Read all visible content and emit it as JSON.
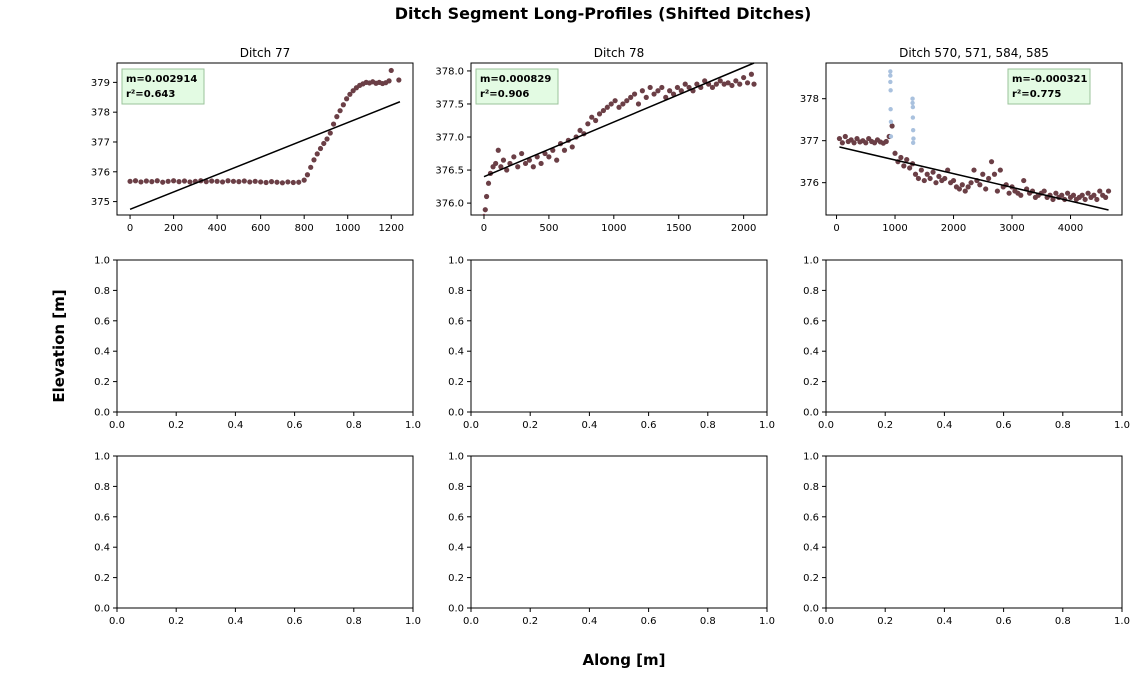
{
  "figure": {
    "title": "Ditch Segment Long-Profiles (Shifted Ditches)",
    "xlabel": "Along [m]",
    "ylabel": "Elevation [m]"
  },
  "colors": {
    "primary_points": "#6b3f46",
    "secondary_points": "#a9c1de",
    "fit_line": "#000000",
    "stats_box_fill": "#e3fbe3",
    "stats_box_border": "#9bc39b",
    "axes": "#000000",
    "background": "#ffffff"
  },
  "chart_data": [
    {
      "type": "scatter",
      "title": "Ditch 77",
      "xlim": [
        -60,
        1300
      ],
      "ylim": [
        374.55,
        379.65
      ],
      "xticks": [
        0,
        200,
        400,
        600,
        800,
        1000,
        1200
      ],
      "yticks": [
        375,
        376,
        377,
        378,
        379
      ],
      "tick_labels_x": [
        "0",
        "200",
        "400",
        "600",
        "800",
        "1000",
        "1200"
      ],
      "tick_labels_y": [
        "375",
        "376",
        "377",
        "378",
        "379"
      ],
      "stats": {
        "slope_label": "m=0.002914",
        "r2_label": "r²=0.643",
        "position": "top-left"
      },
      "fit_line": {
        "x": [
          0,
          1240
        ],
        "y": [
          374.74,
          378.35
        ]
      },
      "series": [
        {
          "name": "profile",
          "color_key": "primary_points",
          "x": [
            0,
            25,
            50,
            75,
            100,
            125,
            150,
            175,
            200,
            225,
            250,
            275,
            300,
            325,
            350,
            375,
            400,
            425,
            450,
            475,
            500,
            525,
            550,
            575,
            600,
            625,
            650,
            675,
            700,
            725,
            750,
            775,
            800,
            815,
            830,
            845,
            860,
            875,
            890,
            905,
            920,
            935,
            950,
            965,
            980,
            995,
            1010,
            1025,
            1040,
            1055,
            1070,
            1085,
            1100,
            1115,
            1130,
            1145,
            1160,
            1175,
            1190,
            1200,
            1235
          ],
          "y": [
            375.68,
            375.7,
            375.66,
            375.69,
            375.67,
            375.7,
            375.65,
            375.68,
            375.7,
            375.67,
            375.69,
            375.66,
            375.68,
            375.7,
            375.67,
            375.69,
            375.68,
            375.66,
            375.7,
            375.68,
            375.67,
            375.69,
            375.66,
            375.68,
            375.66,
            375.64,
            375.67,
            375.65,
            375.63,
            375.66,
            375.64,
            375.65,
            375.72,
            375.9,
            376.15,
            376.4,
            376.6,
            376.78,
            376.95,
            377.1,
            377.3,
            377.6,
            377.85,
            378.05,
            378.25,
            378.45,
            378.6,
            378.72,
            378.82,
            378.9,
            378.95,
            379.0,
            378.98,
            379.02,
            378.97,
            379.0,
            378.96,
            378.99,
            379.05,
            379.4,
            379.08
          ]
        }
      ]
    },
    {
      "type": "scatter",
      "title": "Ditch 78",
      "xlim": [
        -100,
        2180
      ],
      "ylim": [
        375.82,
        378.12
      ],
      "xticks": [
        0,
        500,
        1000,
        1500,
        2000
      ],
      "yticks": [
        376.0,
        376.5,
        377.0,
        377.5,
        378.0
      ],
      "tick_labels_x": [
        "0",
        "500",
        "1000",
        "1500",
        "2000"
      ],
      "tick_labels_y": [
        "376.0",
        "376.5",
        "377.0",
        "377.5",
        "378.0"
      ],
      "stats": {
        "slope_label": "m=0.000829",
        "r2_label": "r²=0.906",
        "position": "top-left"
      },
      "fit_line": {
        "x": [
          0,
          2080
        ],
        "y": [
          376.4,
          378.12
        ]
      },
      "series": [
        {
          "name": "profile",
          "color_key": "primary_points",
          "x": [
            0,
            10,
            20,
            35,
            50,
            70,
            90,
            110,
            130,
            150,
            175,
            200,
            230,
            260,
            290,
            320,
            350,
            380,
            410,
            440,
            470,
            500,
            530,
            560,
            590,
            620,
            650,
            680,
            710,
            740,
            770,
            800,
            830,
            860,
            890,
            920,
            950,
            980,
            1010,
            1040,
            1070,
            1100,
            1130,
            1160,
            1190,
            1220,
            1250,
            1280,
            1310,
            1340,
            1370,
            1400,
            1430,
            1460,
            1490,
            1520,
            1550,
            1580,
            1610,
            1640,
            1670,
            1700,
            1730,
            1760,
            1790,
            1820,
            1850,
            1880,
            1910,
            1940,
            1970,
            2000,
            2030,
            2060,
            2080
          ],
          "y": [
            375.8,
            375.9,
            376.1,
            376.3,
            376.45,
            376.55,
            376.6,
            376.8,
            376.55,
            376.65,
            376.5,
            376.6,
            376.7,
            376.55,
            376.75,
            376.6,
            376.65,
            376.55,
            376.7,
            376.6,
            376.75,
            376.7,
            376.8,
            376.65,
            376.9,
            376.8,
            376.95,
            376.85,
            377.0,
            377.1,
            377.05,
            377.2,
            377.3,
            377.25,
            377.35,
            377.4,
            377.45,
            377.5,
            377.55,
            377.45,
            377.5,
            377.55,
            377.6,
            377.65,
            377.5,
            377.7,
            377.6,
            377.75,
            377.65,
            377.7,
            377.75,
            377.6,
            377.7,
            377.65,
            377.75,
            377.7,
            377.8,
            377.75,
            377.7,
            377.8,
            377.75,
            377.85,
            377.8,
            377.75,
            377.8,
            377.85,
            377.8,
            377.82,
            377.78,
            377.85,
            377.8,
            377.9,
            377.82,
            377.95,
            377.8
          ]
        }
      ]
    },
    {
      "type": "scatter",
      "title": "Ditch 570, 571, 584, 585",
      "xlim": [
        -180,
        4880
      ],
      "ylim": [
        375.23,
        378.85
      ],
      "xticks": [
        0,
        1000,
        2000,
        3000,
        4000
      ],
      "yticks": [
        376,
        377,
        378
      ],
      "tick_labels_x": [
        "0",
        "1000",
        "2000",
        "3000",
        "4000"
      ],
      "tick_labels_y": [
        "376",
        "377",
        "378"
      ],
      "stats": {
        "slope_label": "m=-0.000321",
        "r2_label": "r²=0.775",
        "position": "top-right"
      },
      "fit_line": {
        "x": [
          50,
          4650
        ],
        "y": [
          376.85,
          375.35
        ]
      },
      "series": [
        {
          "name": "profile",
          "color_key": "primary_points",
          "x": [
            50,
            100,
            150,
            200,
            250,
            300,
            350,
            400,
            450,
            500,
            550,
            600,
            650,
            700,
            750,
            800,
            850,
            900,
            950,
            1000,
            1050,
            1100,
            1150,
            1200,
            1250,
            1300,
            1350,
            1400,
            1450,
            1500,
            1550,
            1600,
            1650,
            1700,
            1750,
            1800,
            1850,
            1900,
            1950,
            2000,
            2050,
            2100,
            2150,
            2200,
            2250,
            2300,
            2350,
            2400,
            2450,
            2500,
            2550,
            2600,
            2650,
            2700,
            2750,
            2800,
            2850,
            2900,
            2950,
            3000,
            3050,
            3100,
            3150,
            3200,
            3250,
            3300,
            3350,
            3400,
            3450,
            3500,
            3550,
            3600,
            3650,
            3700,
            3750,
            3800,
            3850,
            3900,
            3950,
            4000,
            4050,
            4100,
            4150,
            4200,
            4250,
            4300,
            4350,
            4400,
            4450,
            4500,
            4550,
            4600,
            4650
          ],
          "y": [
            377.05,
            376.95,
            377.1,
            376.98,
            377.02,
            376.95,
            377.05,
            376.97,
            377.0,
            376.95,
            377.05,
            376.98,
            376.95,
            377.02,
            376.97,
            376.94,
            376.98,
            377.1,
            377.35,
            376.7,
            376.5,
            376.6,
            376.4,
            376.55,
            376.35,
            376.45,
            376.2,
            376.1,
            376.3,
            376.05,
            376.2,
            376.1,
            376.25,
            376.0,
            376.15,
            376.05,
            376.1,
            376.3,
            376.0,
            376.05,
            375.9,
            375.85,
            375.95,
            375.8,
            375.9,
            376.0,
            376.3,
            376.05,
            375.95,
            376.2,
            375.85,
            376.1,
            376.5,
            376.2,
            375.8,
            376.3,
            375.9,
            375.95,
            375.75,
            375.9,
            375.8,
            375.75,
            375.7,
            376.05,
            375.85,
            375.75,
            375.8,
            375.65,
            375.7,
            375.75,
            375.8,
            375.65,
            375.7,
            375.6,
            375.75,
            375.65,
            375.7,
            375.6,
            375.75,
            375.65,
            375.7,
            375.6,
            375.65,
            375.7,
            375.6,
            375.75,
            375.65,
            375.7,
            375.6,
            375.8,
            375.7,
            375.65,
            375.8
          ]
        },
        {
          "name": "outliers",
          "color_key": "secondary_points",
          "x": [
            920,
            920,
            920,
            925,
            925,
            930,
            930,
            1300,
            1300,
            1305,
            1305,
            1310,
            1310,
            1315
          ],
          "y": [
            378.65,
            378.55,
            378.4,
            378.2,
            377.75,
            377.45,
            377.1,
            378.0,
            377.9,
            377.8,
            377.55,
            377.25,
            376.95,
            377.05
          ]
        }
      ]
    },
    {
      "type": "empty",
      "title": "",
      "xlim": [
        0,
        1
      ],
      "ylim": [
        0,
        1
      ],
      "xticks": [
        0,
        0.2,
        0.4,
        0.6,
        0.8,
        1.0
      ],
      "yticks": [
        0,
        0.2,
        0.4,
        0.6,
        0.8,
        1.0
      ],
      "tick_labels_x": [
        "0.0",
        "0.2",
        "0.4",
        "0.6",
        "0.8",
        "1.0"
      ],
      "tick_labels_y": [
        "0.0",
        "0.2",
        "0.4",
        "0.6",
        "0.8",
        "1.0"
      ]
    },
    {
      "type": "empty",
      "title": "",
      "xlim": [
        0,
        1
      ],
      "ylim": [
        0,
        1
      ],
      "xticks": [
        0,
        0.2,
        0.4,
        0.6,
        0.8,
        1.0
      ],
      "yticks": [
        0,
        0.2,
        0.4,
        0.6,
        0.8,
        1.0
      ],
      "tick_labels_x": [
        "0.0",
        "0.2",
        "0.4",
        "0.6",
        "0.8",
        "1.0"
      ],
      "tick_labels_y": [
        "0.0",
        "0.2",
        "0.4",
        "0.6",
        "0.8",
        "1.0"
      ]
    },
    {
      "type": "empty",
      "title": "",
      "xlim": [
        0,
        1
      ],
      "ylim": [
        0,
        1
      ],
      "xticks": [
        0,
        0.2,
        0.4,
        0.6,
        0.8,
        1.0
      ],
      "yticks": [
        0,
        0.2,
        0.4,
        0.6,
        0.8,
        1.0
      ],
      "tick_labels_x": [
        "0.0",
        "0.2",
        "0.4",
        "0.6",
        "0.8",
        "1.0"
      ],
      "tick_labels_y": [
        "0.0",
        "0.2",
        "0.4",
        "0.6",
        "0.8",
        "1.0"
      ]
    },
    {
      "type": "empty",
      "title": "",
      "xlim": [
        0,
        1
      ],
      "ylim": [
        0,
        1
      ],
      "xticks": [
        0,
        0.2,
        0.4,
        0.6,
        0.8,
        1.0
      ],
      "yticks": [
        0,
        0.2,
        0.4,
        0.6,
        0.8,
        1.0
      ],
      "tick_labels_x": [
        "0.0",
        "0.2",
        "0.4",
        "0.6",
        "0.8",
        "1.0"
      ],
      "tick_labels_y": [
        "0.0",
        "0.2",
        "0.4",
        "0.6",
        "0.8",
        "1.0"
      ]
    },
    {
      "type": "empty",
      "title": "",
      "xlim": [
        0,
        1
      ],
      "ylim": [
        0,
        1
      ],
      "xticks": [
        0,
        0.2,
        0.4,
        0.6,
        0.8,
        1.0
      ],
      "yticks": [
        0,
        0.2,
        0.4,
        0.6,
        0.8,
        1.0
      ],
      "tick_labels_x": [
        "0.0",
        "0.2",
        "0.4",
        "0.6",
        "0.8",
        "1.0"
      ],
      "tick_labels_y": [
        "0.0",
        "0.2",
        "0.4",
        "0.6",
        "0.8",
        "1.0"
      ]
    },
    {
      "type": "empty",
      "title": "",
      "xlim": [
        0,
        1
      ],
      "ylim": [
        0,
        1
      ],
      "xticks": [
        0,
        0.2,
        0.4,
        0.6,
        0.8,
        1.0
      ],
      "yticks": [
        0,
        0.2,
        0.4,
        0.6,
        0.8,
        1.0
      ],
      "tick_labels_x": [
        "0.0",
        "0.2",
        "0.4",
        "0.6",
        "0.8",
        "1.0"
      ],
      "tick_labels_y": [
        "0.0",
        "0.2",
        "0.4",
        "0.6",
        "0.8",
        "1.0"
      ]
    }
  ]
}
